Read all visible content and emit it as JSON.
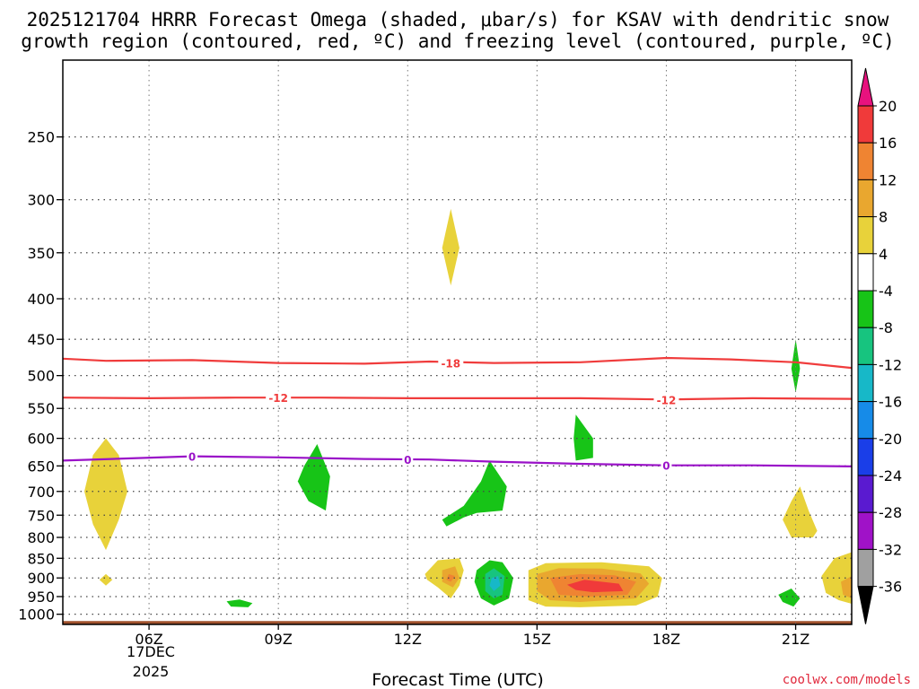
{
  "chart_data": {
    "type": "heatmap",
    "title_line1": "2025121704 HRRR Forecast Omega (shaded, μbar/s) for KSAV with dendritic snow",
    "title_line2": "growth region (contoured, red, ºC) and freezing level (contoured, purple, ºC)",
    "xlabel": "Forecast Time (UTC)",
    "x_date_line1": "17DEC",
    "x_date_line2": "2025",
    "ylabel": "",
    "xlim": [
      4.0,
      22.3
    ],
    "ylim_hpa": [
      1030,
      200
    ],
    "x_ticks": [
      {
        "value": 6,
        "label": "06Z"
      },
      {
        "value": 9,
        "label": "09Z"
      },
      {
        "value": 12,
        "label": "12Z"
      },
      {
        "value": 15,
        "label": "15Z"
      },
      {
        "value": 18,
        "label": "18Z"
      },
      {
        "value": 21,
        "label": "21Z"
      }
    ],
    "y_ticks": [
      {
        "value": 250,
        "label": "250"
      },
      {
        "value": 300,
        "label": "300"
      },
      {
        "value": 350,
        "label": "350"
      },
      {
        "value": 400,
        "label": "400"
      },
      {
        "value": 450,
        "label": "450"
      },
      {
        "value": 500,
        "label": "500"
      },
      {
        "value": 550,
        "label": "550"
      },
      {
        "value": 600,
        "label": "600"
      },
      {
        "value": 650,
        "label": "650"
      },
      {
        "value": 700,
        "label": "700"
      },
      {
        "value": 750,
        "label": "750"
      },
      {
        "value": 800,
        "label": "800"
      },
      {
        "value": 850,
        "label": "850"
      },
      {
        "value": 900,
        "label": "900"
      },
      {
        "value": 950,
        "label": "950"
      },
      {
        "value": 1000,
        "label": "1000"
      }
    ],
    "colorbar": {
      "labels": [
        "20",
        "16",
        "12",
        "8",
        "4",
        "-4",
        "-8",
        "-12",
        "-16",
        "-20",
        "-24",
        "-28",
        "-32",
        "-36"
      ],
      "bins": [
        {
          "range": [
            20,
            24
          ],
          "color": "#e8127e"
        },
        {
          "range": [
            16,
            20
          ],
          "color": "#f03a3a"
        },
        {
          "range": [
            12,
            16
          ],
          "color": "#ef8432"
        },
        {
          "range": [
            8,
            12
          ],
          "color": "#e9a72f"
        },
        {
          "range": [
            4,
            8
          ],
          "color": "#e8d23a"
        },
        {
          "range": [
            -4,
            4
          ],
          "color": "#ffffff"
        },
        {
          "range": [
            -8,
            -4
          ],
          "color": "#17c417"
        },
        {
          "range": [
            -12,
            -8
          ],
          "color": "#17c47f"
        },
        {
          "range": [
            -16,
            -12
          ],
          "color": "#17b8c8"
        },
        {
          "range": [
            -20,
            -16
          ],
          "color": "#168be8"
        },
        {
          "range": [
            -24,
            -20
          ],
          "color": "#1a3ee8"
        },
        {
          "range": [
            -28,
            -24
          ],
          "color": "#5a1ad0"
        },
        {
          "range": [
            -32,
            -28
          ],
          "color": "#a012c8"
        },
        {
          "range": [
            -36,
            -32
          ],
          "color": "#a0a0a0"
        },
        {
          "range": [
            -40,
            -36
          ],
          "color": "#000000"
        }
      ]
    },
    "contours": [
      {
        "name": "dgz-minus18",
        "label": "-18",
        "color": "#f03c3c",
        "points": [
          [
            4.0,
            476
          ],
          [
            5.0,
            479
          ],
          [
            7.0,
            478
          ],
          [
            9.0,
            482
          ],
          [
            11.0,
            483
          ],
          [
            12.5,
            480
          ],
          [
            14.0,
            482
          ],
          [
            16.0,
            481
          ],
          [
            18.0,
            475
          ],
          [
            19.5,
            477
          ],
          [
            21.0,
            481
          ],
          [
            22.3,
            489
          ]
        ],
        "label_at": [
          13.0,
          482
        ]
      },
      {
        "name": "dgz-minus12",
        "label": "-12",
        "color": "#f03c3c",
        "points": [
          [
            4.0,
            533
          ],
          [
            6.0,
            534
          ],
          [
            8.0,
            533
          ],
          [
            10.0,
            533
          ],
          [
            12.0,
            534
          ],
          [
            14.0,
            534
          ],
          [
            16.0,
            534
          ],
          [
            18.0,
            536
          ],
          [
            20.0,
            534
          ],
          [
            22.3,
            535
          ]
        ],
        "label_at": [
          9.0,
          533
        ],
        "label2_at": [
          18.0,
          536
        ]
      },
      {
        "name": "freezing-level",
        "label": "0",
        "color": "#9a12c8",
        "points": [
          [
            4.0,
            640
          ],
          [
            5.5,
            636
          ],
          [
            7.0,
            632
          ],
          [
            9.0,
            634
          ],
          [
            11.0,
            637
          ],
          [
            12.5,
            638
          ],
          [
            14.0,
            642
          ],
          [
            16.0,
            646
          ],
          [
            18.0,
            649
          ],
          [
            20.0,
            649
          ],
          [
            22.3,
            651
          ]
        ],
        "label_at": [
          7.0,
          632
        ],
        "label2_at": [
          12.0,
          638
        ],
        "label3_at": [
          18.0,
          649
        ]
      }
    ],
    "shaded_regions": [
      {
        "name": "omega-pos-4-8-06z",
        "value_bin": "4 to 8",
        "color": "#e8d23a",
        "points": [
          [
            5.0,
            600
          ],
          [
            5.3,
            630
          ],
          [
            5.5,
            700
          ],
          [
            5.3,
            760
          ],
          [
            5.0,
            830
          ],
          [
            4.7,
            770
          ],
          [
            4.5,
            700
          ],
          [
            4.7,
            630
          ]
        ]
      },
      {
        "name": "omega-pos-4-8-06z-low",
        "value_bin": "4 to 8",
        "color": "#e8d23a",
        "points": [
          [
            5.0,
            890
          ],
          [
            5.15,
            905
          ],
          [
            5.0,
            920
          ],
          [
            4.85,
            905
          ]
        ]
      },
      {
        "name": "omega-neg-4-8-08z",
        "value_bin": "-4 to -8",
        "color": "#17c417",
        "points": [
          [
            7.8,
            963
          ],
          [
            8.1,
            958
          ],
          [
            8.4,
            968
          ],
          [
            8.3,
            980
          ],
          [
            7.9,
            978
          ]
        ]
      },
      {
        "name": "omega-neg-4-8-10z",
        "value_bin": "-4 to -8",
        "color": "#17c417",
        "points": [
          [
            9.9,
            610
          ],
          [
            10.2,
            670
          ],
          [
            10.1,
            740
          ],
          [
            9.7,
            720
          ],
          [
            9.45,
            680
          ],
          [
            9.6,
            650
          ]
        ]
      },
      {
        "name": "omega-pos-4-8-13z-upper",
        "value_bin": "4 to 8",
        "color": "#e8d23a",
        "points": [
          [
            13.0,
            308
          ],
          [
            13.2,
            345
          ],
          [
            13.0,
            385
          ],
          [
            12.8,
            345
          ]
        ]
      },
      {
        "name": "omega-neg-4-8-13z-mid",
        "value_bin": "-4 to -8",
        "color": "#17c417",
        "points": [
          [
            13.9,
            640
          ],
          [
            14.3,
            690
          ],
          [
            14.2,
            740
          ],
          [
            13.6,
            745
          ],
          [
            13.3,
            755
          ],
          [
            12.9,
            775
          ],
          [
            12.8,
            760
          ],
          [
            13.3,
            730
          ],
          [
            13.7,
            680
          ]
        ]
      },
      {
        "name": "omega-pos-4-8-13z-low",
        "value_bin": "4 to 8",
        "color": "#e8d23a",
        "points": [
          [
            12.4,
            890
          ],
          [
            12.7,
            855
          ],
          [
            13.2,
            850
          ],
          [
            13.3,
            880
          ],
          [
            13.2,
            920
          ],
          [
            13.0,
            955
          ],
          [
            12.7,
            925
          ],
          [
            12.45,
            905
          ]
        ]
      },
      {
        "name": "omega-pos-8-12-13z-low",
        "value_bin": "8 to 12",
        "color": "#e9a72f",
        "points": [
          [
            12.8,
            880
          ],
          [
            13.1,
            870
          ],
          [
            13.2,
            900
          ],
          [
            13.05,
            925
          ],
          [
            12.8,
            910
          ]
        ]
      },
      {
        "name": "omega-pos-12-16-13z-low",
        "value_bin": "12 to 16",
        "color": "#ef8432",
        "points": [
          [
            12.95,
            890
          ],
          [
            13.1,
            895
          ],
          [
            13.0,
            910
          ],
          [
            12.9,
            905
          ]
        ]
      },
      {
        "name": "omega-neg-4-8-14z",
        "value_bin": "-4 to -8",
        "color": "#17c417",
        "points": [
          [
            13.6,
            880
          ],
          [
            13.9,
            855
          ],
          [
            14.2,
            860
          ],
          [
            14.45,
            900
          ],
          [
            14.35,
            955
          ],
          [
            14.0,
            975
          ],
          [
            13.7,
            955
          ],
          [
            13.55,
            910
          ]
        ]
      },
      {
        "name": "omega-neg-8-12-14z",
        "value_bin": "-8 to -12",
        "color": "#17c47f",
        "points": [
          [
            13.8,
            890
          ],
          [
            14.0,
            875
          ],
          [
            14.25,
            895
          ],
          [
            14.2,
            945
          ],
          [
            14.0,
            955
          ],
          [
            13.8,
            935
          ]
        ]
      },
      {
        "name": "omega-neg-12-16-14z",
        "value_bin": "-12 to -16",
        "color": "#17b8c8",
        "points": [
          [
            13.95,
            900
          ],
          [
            14.1,
            895
          ],
          [
            14.15,
            920
          ],
          [
            14.0,
            935
          ],
          [
            13.9,
            920
          ]
        ]
      },
      {
        "name": "omega-neg-4-8-16z-mid",
        "value_bin": "-4 to -8",
        "color": "#17c417",
        "points": [
          [
            15.9,
            560
          ],
          [
            16.3,
            600
          ],
          [
            16.3,
            635
          ],
          [
            15.9,
            640
          ],
          [
            15.85,
            600
          ]
        ]
      },
      {
        "name": "omega-pos-4-8-16z",
        "value_bin": "4 to 8",
        "color": "#e8d23a",
        "points": [
          [
            14.8,
            880
          ],
          [
            15.2,
            862
          ],
          [
            16.5,
            860
          ],
          [
            17.6,
            870
          ],
          [
            17.9,
            900
          ],
          [
            17.8,
            950
          ],
          [
            17.3,
            975
          ],
          [
            16.0,
            980
          ],
          [
            15.2,
            978
          ],
          [
            14.8,
            960
          ]
        ]
      },
      {
        "name": "omega-pos-8-12-16z",
        "value_bin": "8 to 12",
        "color": "#e9a72f",
        "points": [
          [
            15.0,
            890
          ],
          [
            15.5,
            875
          ],
          [
            16.5,
            876
          ],
          [
            17.4,
            888
          ],
          [
            17.6,
            915
          ],
          [
            17.3,
            955
          ],
          [
            16.0,
            965
          ],
          [
            15.3,
            960
          ],
          [
            15.0,
            935
          ]
        ]
      },
      {
        "name": "omega-pos-12-16-16z",
        "value_bin": "12 to 16",
        "color": "#ef8432",
        "points": [
          [
            15.3,
            900
          ],
          [
            16.0,
            890
          ],
          [
            16.8,
            893
          ],
          [
            17.3,
            910
          ],
          [
            17.1,
            945
          ],
          [
            16.2,
            950
          ],
          [
            15.5,
            945
          ]
        ]
      },
      {
        "name": "omega-pos-16-20-16z",
        "value_bin": "16 to 20",
        "color": "#f03a3a",
        "points": [
          [
            15.7,
            918
          ],
          [
            16.1,
            905
          ],
          [
            16.9,
            915
          ],
          [
            17.0,
            935
          ],
          [
            16.3,
            938
          ],
          [
            15.9,
            932
          ]
        ]
      },
      {
        "name": "omega-neg-4-8-21z-mid",
        "value_bin": "-4 to -8",
        "color": "#17c417",
        "points": [
          [
            21.0,
            450
          ],
          [
            21.1,
            490
          ],
          [
            21.0,
            525
          ],
          [
            20.9,
            490
          ]
        ]
      },
      {
        "name": "omega-pos-4-8-21z-mid",
        "value_bin": "4 to 8",
        "color": "#e8d23a",
        "points": [
          [
            21.1,
            690
          ],
          [
            21.3,
            740
          ],
          [
            21.5,
            785
          ],
          [
            21.4,
            800
          ],
          [
            20.9,
            800
          ],
          [
            20.7,
            760
          ],
          [
            20.9,
            720
          ]
        ]
      },
      {
        "name": "omega-neg-4-8-21z-low",
        "value_bin": "-4 to -8",
        "color": "#17c417",
        "points": [
          [
            20.6,
            945
          ],
          [
            20.9,
            928
          ],
          [
            21.1,
            955
          ],
          [
            20.95,
            978
          ],
          [
            20.7,
            965
          ]
        ]
      },
      {
        "name": "omega-pos-4-8-22z",
        "value_bin": "4 to 8",
        "color": "#e8d23a",
        "points": [
          [
            22.3,
            835
          ],
          [
            21.9,
            850
          ],
          [
            21.6,
            895
          ],
          [
            21.7,
            940
          ],
          [
            22.0,
            960
          ],
          [
            22.3,
            970
          ]
        ]
      },
      {
        "name": "omega-pos-8-12-22z",
        "value_bin": "8 to 12",
        "color": "#e9a72f",
        "points": [
          [
            22.3,
            895
          ],
          [
            22.05,
            910
          ],
          [
            22.1,
            945
          ],
          [
            22.3,
            955
          ]
        ]
      }
    ],
    "ground_color": "#a0522d",
    "ground_top_hpa": 1020
  },
  "credit": "coolwx.com/models"
}
